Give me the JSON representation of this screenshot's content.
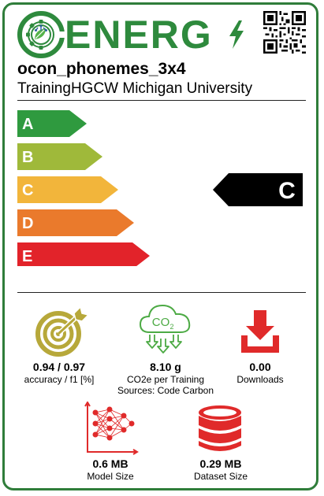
{
  "brand": {
    "name": "ENERG",
    "logo_icon": "gear-leaf-circuit-icon",
    "bolt_icon": "lightning-bolt-icon",
    "qr_icon": "qr-code-icon"
  },
  "model": {
    "name": "ocon_phonemes_3x4",
    "organization": "TrainingHGCW Michigan University"
  },
  "rating": {
    "classes": [
      "A",
      "B",
      "C",
      "D",
      "E"
    ],
    "colors": [
      "#2f9a3f",
      "#9fb93a",
      "#f2b53b",
      "#ea7a2c",
      "#e2232a"
    ],
    "selected": "C"
  },
  "metrics": {
    "performance": {
      "value": "0.94 / 0.97",
      "label": "accuracy / f1  [%]",
      "icon": "target-icon"
    },
    "emissions": {
      "value": "8.10 g",
      "label": "CO2e per Training",
      "source": "Sources: Code Carbon",
      "icon": "co2-cloud-icon",
      "icon_text": "CO",
      "icon_sub": "2"
    },
    "downloads": {
      "value": "0.00",
      "label": "Downloads",
      "icon": "download-icon"
    },
    "model_size": {
      "value": "0.6 MB",
      "label": "Model Size",
      "icon": "neural-network-icon"
    },
    "dataset_size": {
      "value": "0.29 MB",
      "label": "Dataset Size",
      "icon": "database-icon"
    }
  },
  "colors": {
    "frame": "#2f7d3a",
    "brand": "#2e8a3d",
    "performance_icon": "#b7a83a",
    "emissions_icon": "#4caa44",
    "downloads_icon": "#e02a2a",
    "size_icon": "#e02a2a"
  }
}
